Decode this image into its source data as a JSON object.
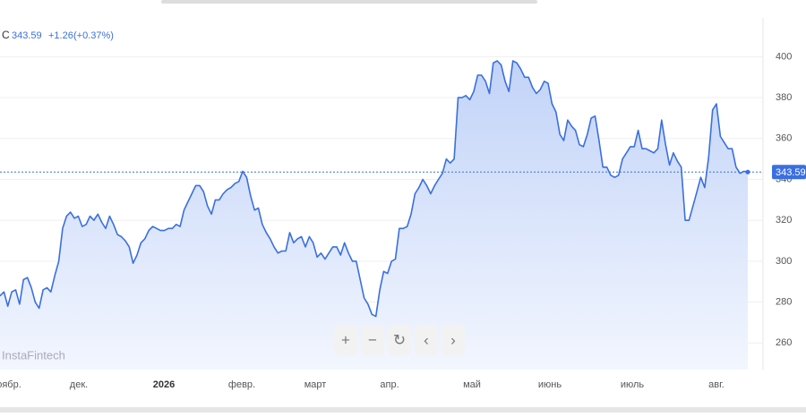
{
  "chart_data": {
    "type": "area",
    "ticker": "С",
    "last_price": 343.59,
    "change": "+1.26",
    "change_pct": "(+0.37%)",
    "watermark": "InstaFintech",
    "color": "#3a6fe0",
    "x_labels": [
      "оябр.",
      "дек.",
      "2026",
      "февр.",
      "март",
      "апр.",
      "май",
      "июнь",
      "июль",
      "авг."
    ],
    "ylim": [
      247,
      419
    ],
    "yticks": [
      260,
      280,
      300,
      320,
      340,
      360,
      380,
      400
    ],
    "grid": true,
    "series": [
      {
        "name": "С",
        "color": "#3a6fe0",
        "values": [
          283,
          285,
          278,
          285,
          286,
          279,
          291,
          292,
          287,
          280,
          277,
          286,
          287,
          285,
          293,
          300,
          316,
          322,
          324,
          321,
          322,
          317,
          318,
          322,
          320,
          323,
          319,
          316,
          322,
          318,
          313,
          312,
          310,
          307,
          299,
          303,
          309,
          311,
          315,
          317,
          316,
          315,
          315,
          316,
          316,
          318,
          317,
          325,
          329,
          333,
          337,
          337,
          334,
          327,
          323,
          330,
          330,
          333,
          335,
          336,
          338,
          339,
          344,
          341,
          332,
          325,
          326,
          318,
          314,
          311,
          307,
          304,
          305,
          305,
          314,
          309,
          311,
          312,
          307,
          312,
          309,
          302,
          304,
          301,
          304,
          307,
          307,
          303,
          309,
          304,
          300,
          300,
          291,
          282,
          279,
          274,
          273,
          286,
          295,
          294,
          300,
          301,
          316,
          316,
          317,
          323,
          333,
          336,
          340,
          337,
          333,
          337,
          340,
          343,
          350,
          348,
          350,
          380,
          380,
          381,
          379,
          383,
          391,
          391,
          388,
          382,
          397,
          398,
          396,
          388,
          383,
          398,
          397,
          394,
          390,
          390,
          385,
          382,
          384,
          388,
          387,
          377,
          373,
          362,
          359,
          369,
          366,
          364,
          357,
          356,
          362,
          370,
          371,
          359,
          346,
          346,
          342,
          341,
          342,
          350,
          353,
          356,
          356,
          364,
          355,
          355,
          354,
          353,
          355,
          369,
          357,
          347,
          353,
          349,
          346,
          320,
          320,
          327,
          334,
          341,
          336,
          351,
          374,
          377,
          361,
          358,
          355,
          355,
          346,
          343,
          344,
          343.59
        ]
      }
    ]
  }
}
